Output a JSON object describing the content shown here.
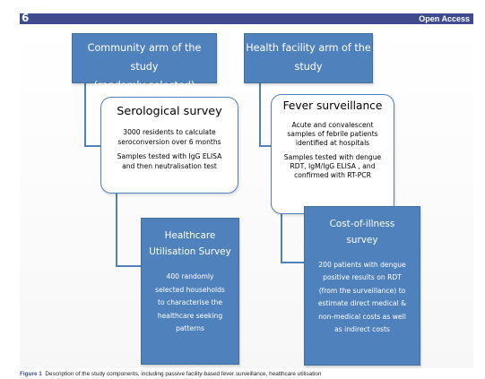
{
  "header": {
    "lock_glyph": "6",
    "open_access": "Open Access"
  },
  "figure": {
    "community_box": {
      "line1": "Community arm of the study",
      "line2": "(randomly selected)"
    },
    "health_box": {
      "line1": "Health facility arm of the",
      "line2": "study"
    },
    "serological": {
      "title": "Serological survey",
      "p1_l1": "3000 residents to calculate",
      "p1_l2": "seroconversion over 6 months",
      "p2_l1": "Samples tested with IgG ELISA",
      "p2_l2": "and then neutralisation test"
    },
    "fever": {
      "title": "Fever surveillance",
      "p1_l1": "Acute and convalescent",
      "p1_l2": "samples of febrile patients",
      "p1_l3": "identified at hospitals",
      "p2_l1": "Samples tested with dengue",
      "p2_l2": "RDT, IgM/IgG ELISA , and",
      "p2_l3": "confirmed with RT-PCR"
    },
    "healthcare": {
      "title_l1": "Healthcare",
      "title_l2": "Utilisation Survey",
      "b_l1": "400 randomly",
      "b_l2": "selected households",
      "b_l3": "to characterise the",
      "b_l4": "healthcare seeking",
      "b_l5": "patterns"
    },
    "cost": {
      "title_l1": "Cost-of-illness",
      "title_l2": "survey",
      "b_l1": "200 patients with dengue",
      "b_l2": "positive results on RDT",
      "b_l3": "(from the surveillance) to",
      "b_l4": "estimate direct medical &",
      "b_l5": "non-medical costs as well",
      "b_l6": "as indirect costs"
    }
  },
  "caption": {
    "label": "Figure 1",
    "text": "Description of the study components, including passive facility-based fever surveillance, healthcare utilisation"
  }
}
